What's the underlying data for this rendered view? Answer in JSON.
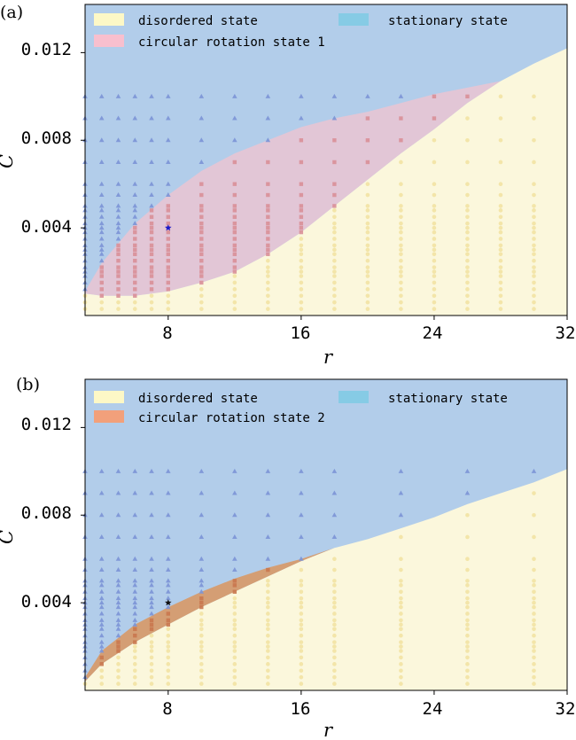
{
  "chart_data": [
    {
      "panel_label": "(a)",
      "type": "scatter",
      "xlabel": "r",
      "ylabel": "C",
      "xlim": [
        3,
        32
      ],
      "ylim": [
        0,
        0.0142
      ],
      "xticks": [
        8,
        16,
        24,
        32
      ],
      "yticks": [
        0.004,
        0.008,
        0.012
      ],
      "ytick_labels": [
        "0.004",
        "0.008",
        "0.012"
      ],
      "legend_location": "top",
      "regions": [
        {
          "name": "disordered state",
          "color": "#fbf7dc"
        },
        {
          "name": "circular rotation state 1",
          "color": "#e2c6d6"
        },
        {
          "name": "stationary state",
          "color": "#b2cdea"
        }
      ],
      "legend_swatches": [
        "#fdf8c6",
        "#f8bfce",
        "#86cbe5"
      ],
      "legend": [
        {
          "label": "disordered state",
          "color": "#fdf8c6"
        },
        {
          "label": "stationary state",
          "color": "#86cbe5"
        },
        {
          "label": "circular rotation state 1",
          "color": "#f8bfce"
        }
      ],
      "upper_boundary": {
        "r": [
          3,
          4,
          6,
          8,
          10,
          12,
          14,
          16,
          18,
          20,
          22,
          24,
          26,
          28,
          30,
          32
        ],
        "C": [
          0.0011,
          0.0024,
          0.0042,
          0.0055,
          0.0066,
          0.0074,
          0.008,
          0.0086,
          0.009,
          0.0093,
          0.0097,
          0.0101,
          0.0104,
          0.0107,
          0.0115,
          0.0122
        ]
      },
      "lower_boundary": {
        "r": [
          3,
          4,
          6,
          8,
          10,
          12,
          14,
          16,
          18,
          20,
          22,
          24,
          26,
          28,
          30,
          32
        ],
        "C": [
          0.001,
          0.0009,
          0.0009,
          0.0011,
          0.0015,
          0.002,
          0.0028,
          0.0038,
          0.005,
          0.0062,
          0.0074,
          0.0085,
          0.0097,
          0.0107,
          0.0115,
          0.0122
        ]
      },
      "sample_columns": [
        3,
        4,
        5,
        6,
        7,
        8,
        10,
        12,
        14,
        16,
        18,
        20,
        22,
        24,
        26,
        28,
        30
      ],
      "sample_C": [
        0.0003,
        0.0006,
        0.0009,
        0.0012,
        0.0015,
        0.0018,
        0.002,
        0.0022,
        0.0025,
        0.0028,
        0.003,
        0.0032,
        0.0035,
        0.0038,
        0.004,
        0.0042,
        0.0045,
        0.0048,
        0.005,
        0.0055,
        0.006,
        0.007,
        0.008,
        0.009,
        0.01
      ],
      "marker_colors": {
        "stationary": "#7b93d6",
        "rotation": "#d98f98",
        "disordered": "#f1e2a0"
      },
      "highlight_point": {
        "r": 8,
        "C": 0.004,
        "color": "#1a1acc"
      }
    },
    {
      "panel_label": "(b)",
      "type": "scatter",
      "xlabel": "r",
      "ylabel": "C",
      "xlim": [
        3,
        32
      ],
      "ylim": [
        0,
        0.0142
      ],
      "xticks": [
        8,
        16,
        24,
        32
      ],
      "yticks": [
        0.004,
        0.008,
        0.012
      ],
      "ytick_labels": [
        "0.004",
        "0.008",
        "0.012"
      ],
      "legend_location": "top",
      "regions": [
        {
          "name": "disordered state",
          "color": "#fbf7dc"
        },
        {
          "name": "circular rotation state 2",
          "color": "#d49e74"
        },
        {
          "name": "stationary state",
          "color": "#b2cdea"
        }
      ],
      "legend_swatches": [
        "#fdf8c6",
        "#f2a07b",
        "#86cbe5"
      ],
      "legend": [
        {
          "label": "disordered state",
          "color": "#fdf8c6"
        },
        {
          "label": "stationary state",
          "color": "#86cbe5"
        },
        {
          "label": "circular rotation state 2",
          "color": "#f2a07b"
        }
      ],
      "upper_boundary": {
        "r": [
          3,
          4,
          6,
          8,
          10,
          12,
          14,
          16,
          18,
          20,
          22,
          24,
          26,
          28,
          30,
          32
        ],
        "C": [
          0.0006,
          0.0018,
          0.003,
          0.0038,
          0.0045,
          0.0051,
          0.0056,
          0.006,
          0.0065,
          0.0069,
          0.0074,
          0.0079,
          0.0085,
          0.009,
          0.0095,
          0.0101
        ]
      },
      "lower_boundary": {
        "r": [
          3,
          4,
          6,
          8,
          10,
          12,
          14,
          16,
          18,
          20,
          22,
          24,
          26,
          28,
          30,
          32
        ],
        "C": [
          0.0004,
          0.0012,
          0.0022,
          0.003,
          0.0038,
          0.0045,
          0.0052,
          0.0059,
          0.0065,
          0.0069,
          0.0074,
          0.0079,
          0.0085,
          0.009,
          0.0095,
          0.0101
        ]
      },
      "sample_columns": [
        3,
        4,
        5,
        6,
        7,
        8,
        10,
        12,
        14,
        16,
        18,
        22,
        26,
        30
      ],
      "sample_C": [
        0.0003,
        0.0006,
        0.0009,
        0.0012,
        0.0015,
        0.0018,
        0.002,
        0.0022,
        0.0025,
        0.0028,
        0.003,
        0.0032,
        0.0035,
        0.0038,
        0.004,
        0.0042,
        0.0045,
        0.0048,
        0.005,
        0.0055,
        0.006,
        0.007,
        0.008,
        0.009,
        0.01
      ],
      "marker_colors": {
        "stationary": "#7b93d6",
        "rotation": "#c9774f",
        "disordered": "#f1e2a0"
      },
      "highlight_point": {
        "r": 8,
        "C": 0.004,
        "color": "#111111"
      }
    }
  ]
}
